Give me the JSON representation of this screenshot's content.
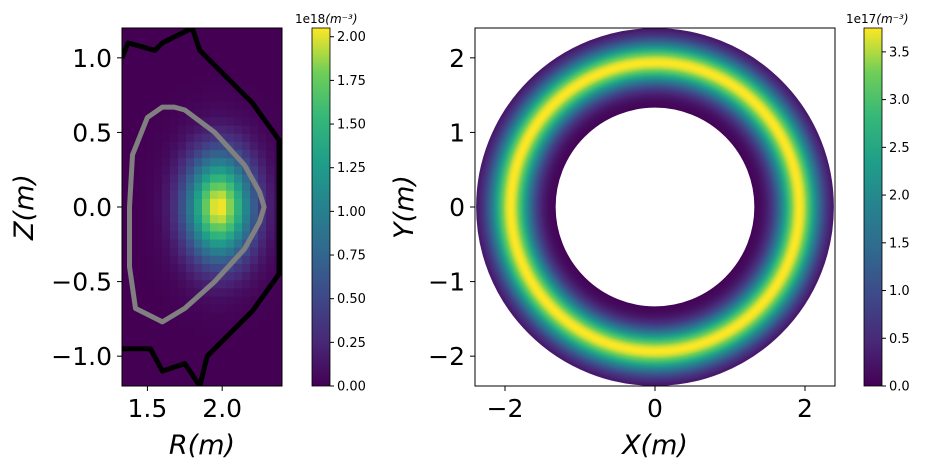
{
  "chart_data": [
    {
      "type": "heatmap",
      "title": "",
      "xlabel": "R(m)",
      "ylabel": "Z(m)",
      "xlim": [
        1.33,
        2.4
      ],
      "ylim": [
        -1.2,
        1.2
      ],
      "xticks": [
        {
          "value": 1.5,
          "label": "1.5"
        },
        {
          "value": 2.0,
          "label": "2.0"
        }
      ],
      "yticks": [
        {
          "value": 1.0,
          "label": "1.0"
        },
        {
          "value": 0.5,
          "label": "0.5"
        },
        {
          "value": 0.0,
          "label": "0.0"
        },
        {
          "value": -0.5,
          "label": "−0.5"
        },
        {
          "value": -1.0,
          "label": "−1.0"
        }
      ],
      "field": {
        "peak": 2.05e+18,
        "center_R": 1.98,
        "center_Z": 0.0,
        "sigma_R": 0.22,
        "sigma_Z": 0.35
      },
      "colorbar": {
        "range": [
          0.0,
          2.05
        ],
        "exponent": "1e18",
        "unit": "(m⁻³)",
        "ticks": [
          {
            "value": 0.0,
            "label": "0.00"
          },
          {
            "value": 0.25,
            "label": "0.25"
          },
          {
            "value": 0.5,
            "label": "0.50"
          },
          {
            "value": 0.75,
            "label": "0.75"
          },
          {
            "value": 1.0,
            "label": "1.00"
          },
          {
            "value": 1.25,
            "label": "1.25"
          },
          {
            "value": 1.5,
            "label": "1.50"
          },
          {
            "value": 1.75,
            "label": "1.75"
          },
          {
            "value": 2.0,
            "label": "2.00"
          }
        ]
      },
      "wall_outline": [
        [
          1.33,
          1.0
        ],
        [
          1.37,
          1.1
        ],
        [
          1.55,
          1.05
        ],
        [
          1.6,
          1.1
        ],
        [
          1.8,
          1.2
        ],
        [
          1.85,
          1.05
        ],
        [
          2.2,
          0.7
        ],
        [
          2.38,
          0.45
        ],
        [
          2.38,
          -0.45
        ],
        [
          2.2,
          -0.7
        ],
        [
          1.9,
          -1.0
        ],
        [
          1.85,
          -1.2
        ],
        [
          1.75,
          -1.05
        ],
        [
          1.6,
          -1.1
        ],
        [
          1.52,
          -0.95
        ],
        [
          1.33,
          -0.95
        ]
      ],
      "separatrix": [
        [
          1.68,
          0.67
        ],
        [
          1.75,
          0.65
        ],
        [
          1.95,
          0.5
        ],
        [
          2.15,
          0.28
        ],
        [
          2.25,
          0.1
        ],
        [
          2.28,
          0.0
        ],
        [
          2.25,
          -0.1
        ],
        [
          2.15,
          -0.28
        ],
        [
          1.95,
          -0.5
        ],
        [
          1.75,
          -0.68
        ],
        [
          1.6,
          -0.77
        ],
        [
          1.42,
          -0.68
        ],
        [
          1.38,
          -0.4
        ],
        [
          1.38,
          0.0
        ],
        [
          1.4,
          0.35
        ],
        [
          1.5,
          0.6
        ],
        [
          1.6,
          0.67
        ]
      ]
    },
    {
      "type": "heatmap",
      "title": "",
      "xlabel": "X(m)",
      "ylabel": "Y(m)",
      "xlim": [
        -2.4,
        2.4
      ],
      "ylim": [
        -2.4,
        2.4
      ],
      "xticks": [
        {
          "value": -2,
          "label": "−2"
        },
        {
          "value": 0,
          "label": "0"
        },
        {
          "value": 2,
          "label": "2"
        }
      ],
      "yticks": [
        {
          "value": 2,
          "label": "2"
        },
        {
          "value": 1,
          "label": "1"
        },
        {
          "value": 0,
          "label": "0"
        },
        {
          "value": -1,
          "label": "−1"
        },
        {
          "value": -2,
          "label": "−2"
        }
      ],
      "field": {
        "peak": 3.75e+17,
        "inner_radius": 1.33,
        "outer_radius": 2.38,
        "peak_radius": 1.93,
        "sigma": 0.28
      },
      "colorbar": {
        "range": [
          0.0,
          3.75
        ],
        "exponent": "1e17",
        "unit": "(m⁻³)",
        "ticks": [
          {
            "value": 0.0,
            "label": "0.0"
          },
          {
            "value": 0.5,
            "label": "0.5"
          },
          {
            "value": 1.0,
            "label": "1.0"
          },
          {
            "value": 1.5,
            "label": "1.5"
          },
          {
            "value": 2.0,
            "label": "2.0"
          },
          {
            "value": 2.5,
            "label": "2.5"
          },
          {
            "value": 3.0,
            "label": "3.0"
          },
          {
            "value": 3.5,
            "label": "3.5"
          }
        ]
      }
    }
  ],
  "colors": {
    "wall": "#000000",
    "separatrix": "#808080",
    "background": "#440154"
  }
}
